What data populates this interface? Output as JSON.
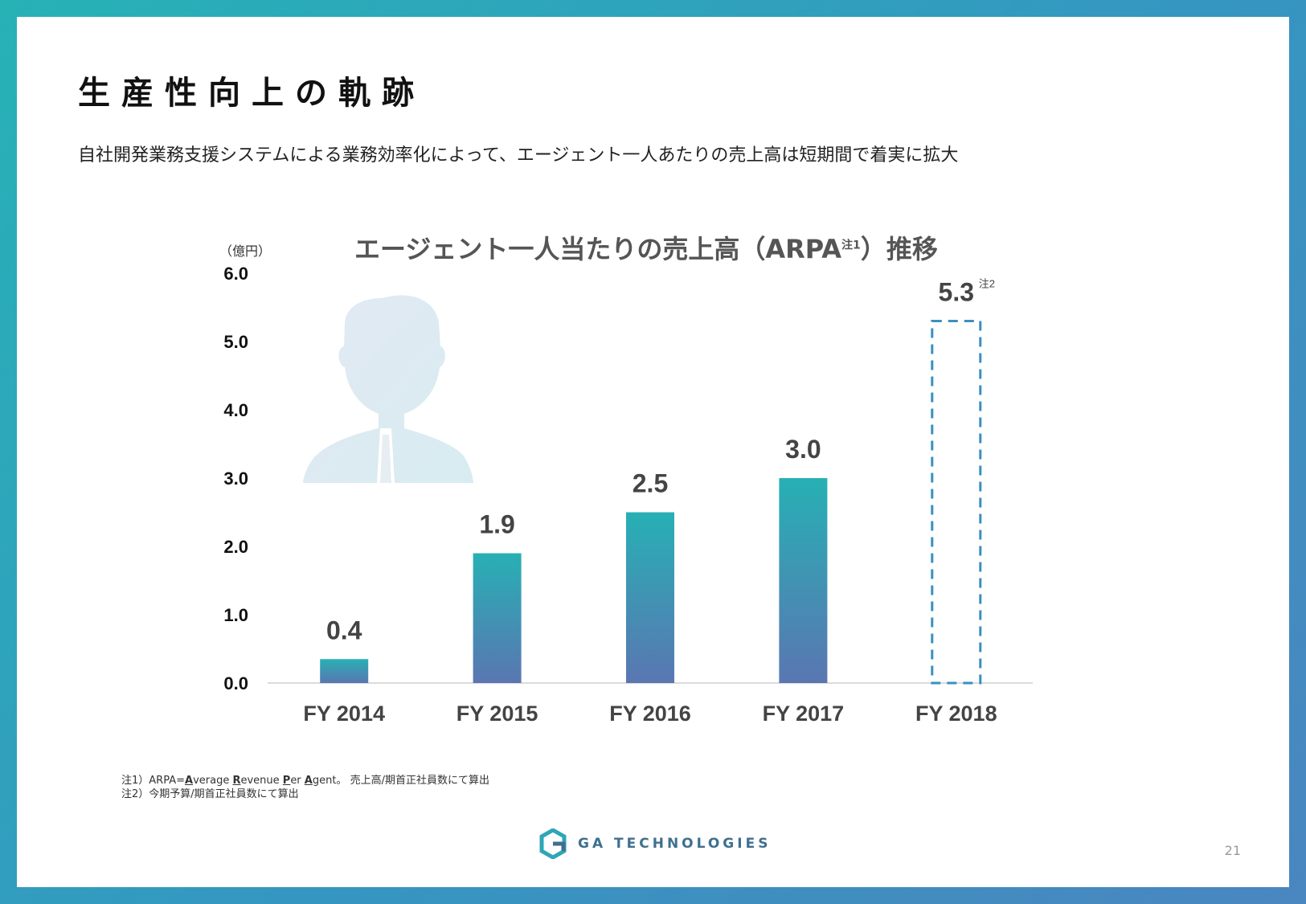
{
  "slide": {
    "title": "生産性向上の軌跡",
    "subtitle": "自社開発業務支援システムによる業務効率化によって、エージェント一人あたりの売上高は短期間で着実に拡大",
    "page_number": "21",
    "logo_text": "GA TECHNOLOGIES"
  },
  "chart_data": {
    "type": "bar",
    "title": "エージェント一人当たりの売上高（ARPA",
    "title_note": "注1",
    "title_tail": "）推移",
    "unit_label": "（億円）",
    "categories": [
      "FY 2014",
      "FY 2015",
      "FY 2016",
      "FY 2017",
      "FY 2018"
    ],
    "values": [
      0.35,
      1.9,
      2.5,
      3.0,
      5.3
    ],
    "value_labels": [
      "0.4",
      "1.9",
      "2.5",
      "3.0",
      "5.3"
    ],
    "forecast_index": 4,
    "forecast_note": "注2",
    "ylim": [
      0,
      6
    ],
    "yticks": [
      "0.0",
      "1.0",
      "2.0",
      "3.0",
      "4.0",
      "5.0",
      "6.0"
    ],
    "grid": false,
    "colors": {
      "bar_top": "#27b0b4",
      "bar_bottom": "#5a76b2",
      "forecast_border": "#3a8fc0"
    }
  },
  "footnotes": {
    "note1_prefix": "注1）ARPA=",
    "note1_acronym": [
      {
        "cap": "A",
        "rest": "verage "
      },
      {
        "cap": "R",
        "rest": "evenue "
      },
      {
        "cap": "P",
        "rest": "er "
      },
      {
        "cap": "A",
        "rest": "gent"
      }
    ],
    "note1_suffix": "。 売上高/期首正社員数にて算出",
    "note2": "注2）今期予算/期首正社員数にて算出"
  },
  "icons": {
    "person": "person-silhouette-icon",
    "logo": "ga-logo-icon"
  }
}
